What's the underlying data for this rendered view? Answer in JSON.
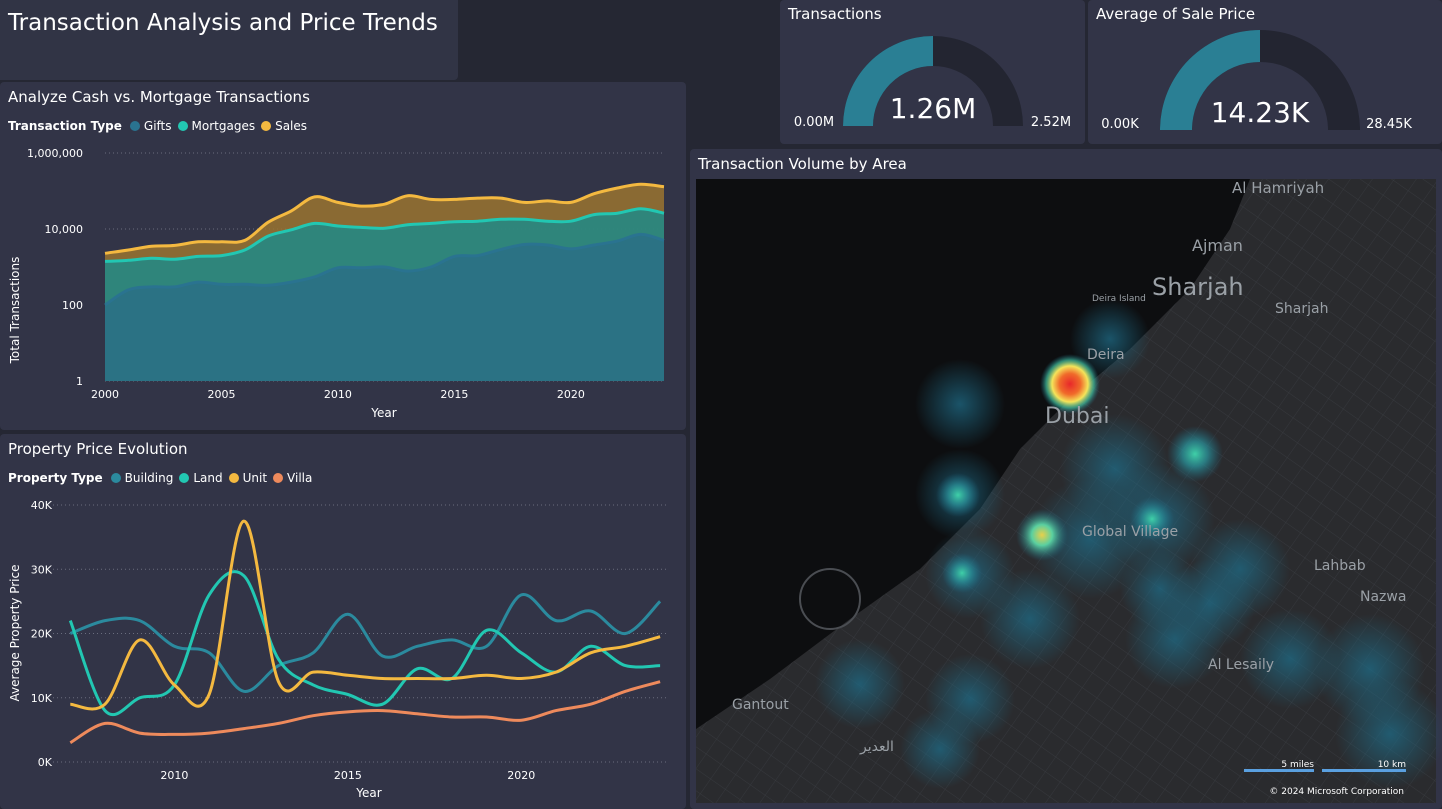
{
  "page": {
    "title": "Transaction Analysis and Price Trends"
  },
  "cards": [
    {
      "title": "Transactions",
      "value": "1.26M",
      "min": "0.00M",
      "max": "2.52M",
      "fraction": 0.5
    },
    {
      "title": "Average of Sale Price",
      "value": "14.23K",
      "min": "0.00K",
      "max": "28.45K",
      "fraction": 0.5
    }
  ],
  "cash_chart": {
    "title": "Analyze Cash vs. Mortgage Transactions",
    "legend_title": "Transaction Type"
  },
  "price_chart": {
    "title": "Property Price Evolution",
    "legend_title": "Property Type"
  },
  "map": {
    "title": "Transaction Volume by Area",
    "scale_miles": "5 miles",
    "scale_km": "10 km",
    "copyright": "© 2024 Microsoft Corporation",
    "labels": [
      "Al Hamriyah",
      "Ajman",
      "Sharjah",
      "Sharjah",
      "Deira Island",
      "Deira",
      "Dubai",
      "Global Village",
      "Lahbab",
      "Nazwa",
      "Al Lesaily",
      "Gantout",
      "العدير"
    ]
  },
  "colors": {
    "gifts": "#2a7390",
    "mortgages": "#22c7b2",
    "sales": "#f4b940",
    "building": "#2b8a9e",
    "land": "#22c7b2",
    "unit": "#f4b940",
    "villa": "#ee8a5c",
    "gauge_fill": "#2a7f94",
    "gauge_track": "#232531"
  },
  "chart_data": [
    {
      "type": "area",
      "title": "Analyze Cash vs. Mortgage Transactions",
      "xlabel": "Year",
      "ylabel": "Total Transactions",
      "yscale": "log",
      "ylim": [
        1,
        1000000
      ],
      "yticks": [
        "1,000,000",
        "10,000",
        "100",
        "1"
      ],
      "xticks": [
        "2000",
        "2005",
        "2010",
        "2015",
        "2020"
      ],
      "legend": "top-left",
      "x": [
        2000,
        2001,
        2002,
        2003,
        2004,
        2005,
        2006,
        2007,
        2008,
        2009,
        2010,
        2011,
        2012,
        2013,
        2014,
        2015,
        2016,
        2017,
        2018,
        2019,
        2020,
        2021,
        2022,
        2023,
        2024
      ],
      "series": [
        {
          "name": "Gifts",
          "values": [
            100,
            250,
            300,
            300,
            400,
            350,
            350,
            330,
            400,
            550,
            950,
            950,
            1000,
            780,
            1000,
            1900,
            2000,
            2900,
            3900,
            3800,
            3000,
            3800,
            4800,
            7200,
            5000
          ]
        },
        {
          "name": "Mortgages",
          "values": [
            1400,
            1500,
            1700,
            1600,
            1900,
            2000,
            2800,
            6500,
            9500,
            14000,
            12000,
            11000,
            10500,
            13000,
            14000,
            15500,
            16000,
            18000,
            18000,
            16000,
            16000,
            24000,
            26000,
            34000,
            26000
          ]
        },
        {
          "name": "Sales",
          "values": [
            2300,
            2800,
            3500,
            3700,
            4600,
            4600,
            5000,
            15000,
            30000,
            70000,
            50000,
            40000,
            45000,
            75000,
            60000,
            60000,
            65000,
            65000,
            50000,
            55000,
            50000,
            85000,
            120000,
            150000,
            130000
          ]
        }
      ]
    },
    {
      "type": "line",
      "title": "Property Price Evolution",
      "xlabel": "Year",
      "ylabel": "Average Property Price",
      "ylim": [
        0,
        40000
      ],
      "yticks": [
        "0K",
        "10K",
        "20K",
        "30K",
        "40K"
      ],
      "xticks": [
        "2010",
        "2015",
        "2020"
      ],
      "legend": "top-left",
      "x": [
        2007,
        2008,
        2009,
        2010,
        2011,
        2012,
        2013,
        2014,
        2015,
        2016,
        2017,
        2018,
        2019,
        2020,
        2021,
        2022,
        2023,
        2024
      ],
      "series": [
        {
          "name": "Building",
          "values": [
            20000,
            22000,
            22000,
            18000,
            17000,
            11000,
            15000,
            17000,
            23000,
            16500,
            18000,
            19000,
            18000,
            26000,
            22000,
            23500,
            20000,
            25000
          ]
        },
        {
          "name": "Land",
          "values": [
            22000,
            8000,
            10000,
            12000,
            26000,
            29000,
            16000,
            12000,
            10500,
            9000,
            14500,
            13000,
            20500,
            17000,
            14000,
            18000,
            15000,
            15000
          ]
        },
        {
          "name": "Unit",
          "values": [
            9000,
            9000,
            19000,
            12000,
            10500,
            37500,
            12500,
            14000,
            13500,
            13000,
            13000,
            13000,
            13500,
            13000,
            14000,
            17000,
            18000,
            19500
          ]
        },
        {
          "name": "Villa",
          "values": [
            3000,
            6000,
            4500,
            4300,
            4500,
            5200,
            6000,
            7200,
            7800,
            8000,
            7500,
            7000,
            7000,
            6500,
            8000,
            9000,
            11000,
            12500
          ]
        }
      ]
    }
  ]
}
